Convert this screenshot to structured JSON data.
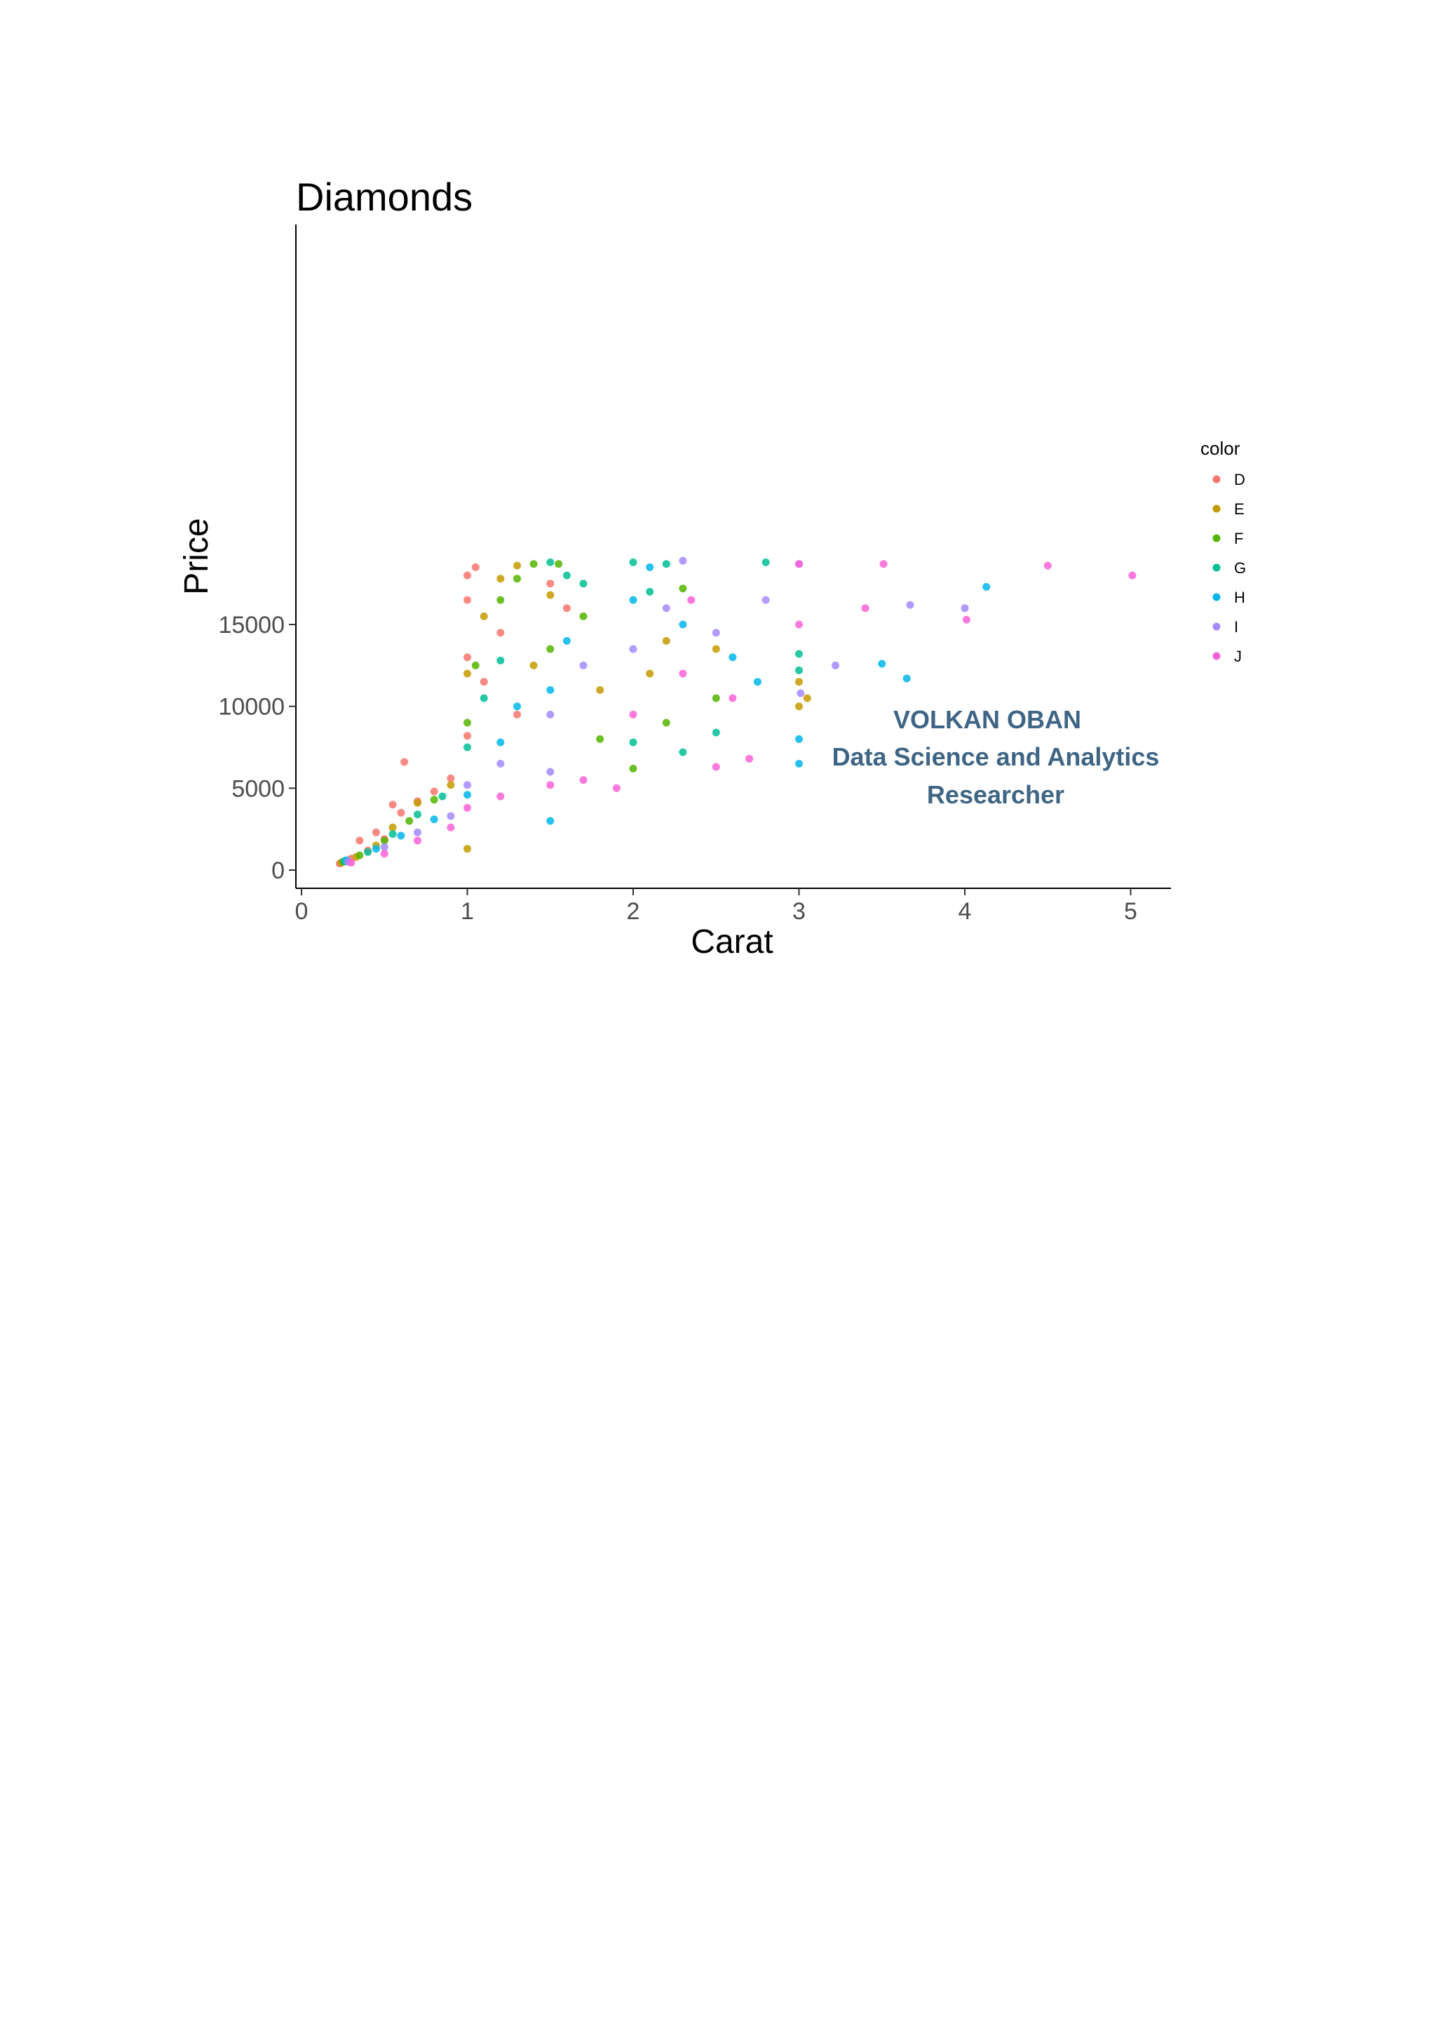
{
  "chart_data": {
    "type": "scatter",
    "title": "Diamonds",
    "xlabel": "Carat",
    "ylabel": "Price",
    "xlim": [
      0,
      5.3
    ],
    "ylim": [
      0,
      19500
    ],
    "x_ticks": [
      "0",
      "1",
      "2",
      "3",
      "4",
      "5"
    ],
    "y_ticks": [
      "0",
      "5000",
      "10000",
      "15000"
    ],
    "grid": false,
    "legend": {
      "title": "color",
      "placement": "right",
      "entries": [
        "D",
        "E",
        "F",
        "G",
        "H",
        "I",
        "J"
      ]
    },
    "series_colors": {
      "D": "#F8766D",
      "E": "#C49A00",
      "F": "#53B400",
      "G": "#00C094",
      "H": "#00B6EB",
      "I": "#A58AFF",
      "J": "#FB61D7"
    },
    "series": [
      {
        "name": "D",
        "points": [
          [
            0.23,
            400
          ],
          [
            0.3,
            700
          ],
          [
            0.4,
            1200
          ],
          [
            0.5,
            1900
          ],
          [
            0.6,
            3500
          ],
          [
            0.7,
            4200
          ],
          [
            0.8,
            4800
          ],
          [
            0.9,
            5600
          ],
          [
            1.0,
            8200
          ],
          [
            1.0,
            13000
          ],
          [
            1.0,
            16500
          ],
          [
            1.0,
            18000
          ],
          [
            1.05,
            18500
          ],
          [
            1.1,
            11500
          ],
          [
            1.2,
            14500
          ],
          [
            1.3,
            9500
          ],
          [
            1.5,
            17500
          ],
          [
            1.6,
            16000
          ],
          [
            0.62,
            6600
          ],
          [
            0.55,
            4000
          ],
          [
            0.45,
            2300
          ],
          [
            0.35,
            1800
          ]
        ]
      },
      {
        "name": "E",
        "points": [
          [
            0.24,
            450
          ],
          [
            0.33,
            800
          ],
          [
            0.45,
            1500
          ],
          [
            0.55,
            2600
          ],
          [
            0.7,
            4100
          ],
          [
            0.9,
            5200
          ],
          [
            1.0,
            1300
          ],
          [
            1.0,
            12000
          ],
          [
            1.1,
            15500
          ],
          [
            1.2,
            17800
          ],
          [
            1.3,
            18600
          ],
          [
            1.4,
            12500
          ],
          [
            1.5,
            16800
          ],
          [
            1.8,
            11000
          ],
          [
            2.1,
            12000
          ],
          [
            2.2,
            14000
          ],
          [
            2.5,
            13500
          ],
          [
            3.0,
            11500
          ],
          [
            3.05,
            10500
          ],
          [
            3.0,
            10000
          ]
        ]
      },
      {
        "name": "F",
        "points": [
          [
            0.25,
            500
          ],
          [
            0.35,
            900
          ],
          [
            0.5,
            1800
          ],
          [
            0.65,
            3000
          ],
          [
            0.8,
            4300
          ],
          [
            1.0,
            9000
          ],
          [
            1.05,
            12500
          ],
          [
            1.2,
            16500
          ],
          [
            1.3,
            17800
          ],
          [
            1.4,
            18700
          ],
          [
            1.5,
            13500
          ],
          [
            1.55,
            18700
          ],
          [
            1.7,
            15500
          ],
          [
            1.8,
            8000
          ],
          [
            2.0,
            6200
          ],
          [
            2.2,
            9000
          ],
          [
            2.5,
            10500
          ],
          [
            2.3,
            17200
          ]
        ]
      },
      {
        "name": "G",
        "points": [
          [
            0.26,
            550
          ],
          [
            0.4,
            1100
          ],
          [
            0.55,
            2200
          ],
          [
            0.7,
            3400
          ],
          [
            0.85,
            4500
          ],
          [
            1.0,
            7500
          ],
          [
            1.1,
            10500
          ],
          [
            1.2,
            12800
          ],
          [
            1.5,
            18800
          ],
          [
            1.6,
            18000
          ],
          [
            1.7,
            17500
          ],
          [
            2.0,
            18800
          ],
          [
            2.1,
            17000
          ],
          [
            2.3,
            7200
          ],
          [
            2.5,
            8400
          ],
          [
            2.0,
            7800
          ],
          [
            2.2,
            18700
          ],
          [
            2.8,
            18800
          ],
          [
            3.0,
            13200
          ],
          [
            3.0,
            12200
          ]
        ]
      },
      {
        "name": "H",
        "points": [
          [
            0.27,
            600
          ],
          [
            0.45,
            1300
          ],
          [
            0.6,
            2100
          ],
          [
            0.8,
            3100
          ],
          [
            1.0,
            4600
          ],
          [
            1.2,
            7800
          ],
          [
            1.3,
            10000
          ],
          [
            1.5,
            3000
          ],
          [
            1.5,
            11000
          ],
          [
            1.6,
            14000
          ],
          [
            2.0,
            16500
          ],
          [
            2.1,
            18500
          ],
          [
            2.3,
            15000
          ],
          [
            2.6,
            13000
          ],
          [
            3.0,
            8000
          ],
          [
            3.0,
            6500
          ],
          [
            3.5,
            12600
          ],
          [
            3.65,
            11700
          ],
          [
            4.13,
            17300
          ],
          [
            2.75,
            11500
          ]
        ]
      },
      {
        "name": "I",
        "points": [
          [
            0.28,
            500
          ],
          [
            0.5,
            1400
          ],
          [
            0.7,
            2300
          ],
          [
            0.9,
            3300
          ],
          [
            1.0,
            5200
          ],
          [
            1.2,
            6500
          ],
          [
            1.5,
            6000
          ],
          [
            1.5,
            9500
          ],
          [
            1.7,
            12500
          ],
          [
            2.0,
            13500
          ],
          [
            2.2,
            16000
          ],
          [
            2.3,
            18900
          ],
          [
            2.5,
            14500
          ],
          [
            2.8,
            16500
          ],
          [
            3.01,
            10800
          ],
          [
            3.22,
            12500
          ],
          [
            3.67,
            16200
          ],
          [
            4.0,
            16000
          ],
          [
            3.0,
            18700
          ]
        ]
      },
      {
        "name": "J",
        "points": [
          [
            0.3,
            450
          ],
          [
            0.5,
            1000
          ],
          [
            0.7,
            1800
          ],
          [
            0.9,
            2600
          ],
          [
            1.0,
            3800
          ],
          [
            1.2,
            4500
          ],
          [
            1.5,
            5200
          ],
          [
            1.7,
            5500
          ],
          [
            1.9,
            5000
          ],
          [
            2.0,
            9500
          ],
          [
            2.3,
            12000
          ],
          [
            2.5,
            6300
          ],
          [
            2.7,
            6800
          ],
          [
            3.0,
            15000
          ],
          [
            3.0,
            18700
          ],
          [
            3.4,
            16000
          ],
          [
            3.51,
            18700
          ],
          [
            4.01,
            15300
          ],
          [
            4.5,
            18600
          ],
          [
            5.01,
            18000
          ],
          [
            2.6,
            10500
          ],
          [
            2.35,
            16500
          ]
        ]
      }
    ]
  },
  "annotation": {
    "lines": [
      "VOLKAN OBAN",
      "Data Science and Analytics",
      "Researcher"
    ],
    "color": "#3f6585"
  }
}
